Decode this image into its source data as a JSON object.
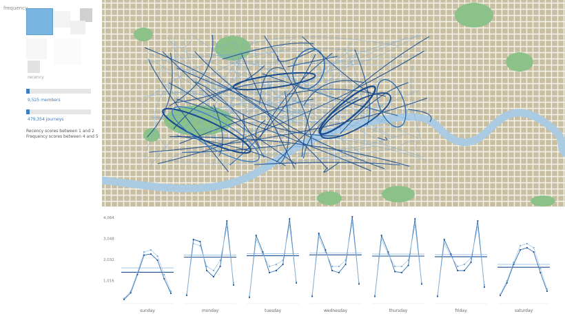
{
  "sidebar": {
    "frequency_label": "frequency",
    "recency_label": "recency",
    "members_text": "9,525 members",
    "members_fraction": 0.05,
    "journeys_text": "479,354 journeys",
    "journeys_fraction": 0.05,
    "score_note_1": "Recency scores between 1 and 2",
    "score_note_2": "Frequency scores between 4 and 5"
  },
  "colors": {
    "accent": "#3b7fc0",
    "map_land": "#c8bfa3",
    "map_river": "#aacbe2",
    "map_park": "#8cc28a",
    "line_dark": "#1a4d8f",
    "line_light": "#6fa8dc"
  },
  "chart_data": {
    "type": "line",
    "ylim": [
      0,
      4064
    ],
    "yticks": [
      "4,064",
      "3,048",
      "2,032",
      "1,016"
    ],
    "categories": [
      "sunday",
      "monday",
      "tuesday",
      "wednesday",
      "thursday",
      "friday",
      "saturday"
    ],
    "hours": [
      0,
      3,
      6,
      9,
      12,
      15,
      18,
      21
    ],
    "series": [
      {
        "values": [
          [
            100,
            420,
            1300,
            2250,
            2300,
            2000,
            1100,
            400
          ],
          [
            300,
            3000,
            2900,
            1500,
            1200,
            1700,
            3900,
            800
          ],
          [
            200,
            3200,
            2400,
            1400,
            1500,
            1800,
            4000,
            900
          ],
          [
            250,
            3300,
            2500,
            1500,
            1400,
            1800,
            4100,
            850
          ],
          [
            250,
            3200,
            2400,
            1450,
            1400,
            1750,
            4000,
            850
          ],
          [
            250,
            3000,
            2300,
            1500,
            1500,
            1900,
            3900,
            700
          ],
          [
            300,
            900,
            1800,
            2500,
            2600,
            2400,
            1400,
            500
          ]
        ]
      },
      {
        "values": [
          [
            150,
            500,
            1400,
            2400,
            2500,
            2200,
            1300,
            500
          ],
          [
            350,
            2800,
            2700,
            1700,
            1500,
            2000,
            3600,
            900
          ],
          [
            250,
            3000,
            2300,
            1700,
            1800,
            2000,
            3700,
            950
          ],
          [
            300,
            3100,
            2400,
            1700,
            1700,
            2000,
            3800,
            900
          ],
          [
            300,
            3000,
            2300,
            1700,
            1700,
            2000,
            3700,
            900
          ],
          [
            300,
            2800,
            2200,
            1700,
            1800,
            2100,
            3600,
            800
          ],
          [
            350,
            1000,
            1900,
            2700,
            2800,
            2600,
            1600,
            600
          ]
        ]
      }
    ],
    "means": [
      [
        1420,
        1630
      ],
      [
        2150,
        2250
      ],
      [
        2220,
        2320
      ],
      [
        2260,
        2360
      ],
      [
        2200,
        2300
      ],
      [
        2170,
        2270
      ],
      [
        1660,
        1800
      ]
    ]
  }
}
